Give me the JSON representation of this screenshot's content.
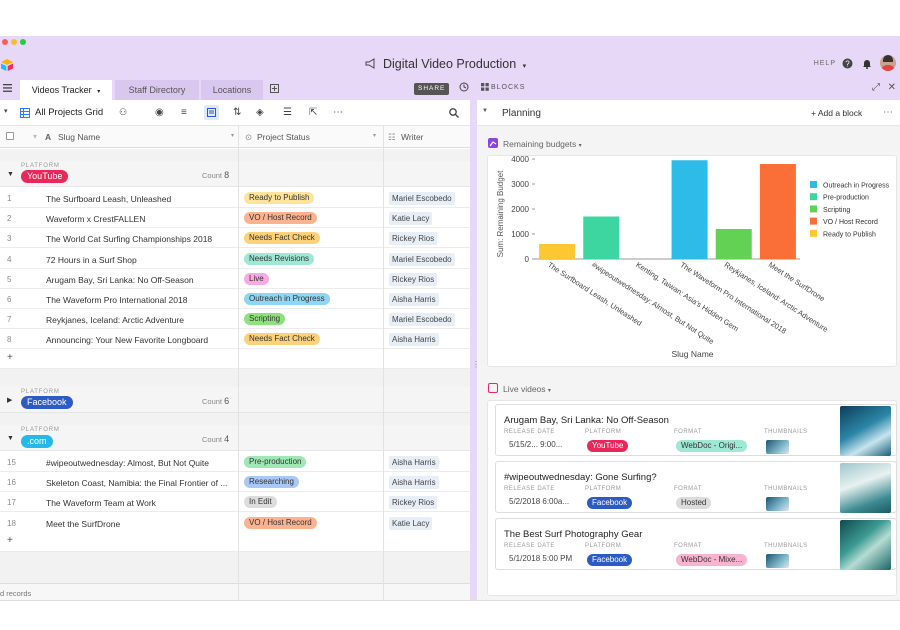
{
  "app": {
    "title": "Digital Video Production",
    "help": "HELP",
    "share": "SHARE",
    "blocks": "BLOCKS",
    "tabs": [
      "Videos Tracker",
      "Staff Directory",
      "Locations"
    ]
  },
  "view": {
    "name": "All Projects Grid",
    "columns": {
      "slug": "Slug Name",
      "status": "Project Status",
      "writer": "Writer"
    },
    "records_footer": "d records"
  },
  "groups": [
    {
      "platform_label": "PLATFORM",
      "name": "YouTube",
      "color": "#e8285a",
      "count_label": "Count",
      "count": "8",
      "rows": [
        {
          "n": "1",
          "slug": "The Surfboard Leash, Unleashed",
          "status": "Ready to Publish",
          "status_color": "#fde49a",
          "writer": "Mariel Escobedo"
        },
        {
          "n": "2",
          "slug": "Waveform x CrestFALLEN",
          "status": "VO / Host Record",
          "status_color": "#fbb28f",
          "writer": "Katie Lacy"
        },
        {
          "n": "3",
          "slug": "The World Cat Surfing Championships 2018",
          "status": "Needs Fact Check",
          "status_color": "#fbd27a",
          "writer": "Rickey Rios"
        },
        {
          "n": "4",
          "slug": "72 Hours in a Surf Shop",
          "status": "Needs Revisions",
          "status_color": "#9fe8d6",
          "writer": "Mariel Escobedo"
        },
        {
          "n": "5",
          "slug": "Arugam Bay, Sri Lanka: No Off-Season",
          "status": "Live",
          "status_color": "#f7a9e2",
          "writer": "Rickey Rios"
        },
        {
          "n": "6",
          "slug": "The Waveform Pro International 2018",
          "status": "Outreach in Progress",
          "status_color": "#8fd6f4",
          "writer": "Aisha Harris"
        },
        {
          "n": "7",
          "slug": "Reykjanes, Iceland: Arctic Adventure",
          "status": "Scripting",
          "status_color": "#8fe07e",
          "writer": "Mariel Escobedo"
        },
        {
          "n": "8",
          "slug": "Announcing: Your New Favorite Longboard",
          "status": "Needs Fact Check",
          "status_color": "#fbd27a",
          "writer": "Aisha Harris"
        }
      ]
    },
    {
      "platform_label": "PLATFORM",
      "name": "Facebook",
      "color": "#2d5bc4",
      "count_label": "Count",
      "count": "6",
      "rows": []
    },
    {
      "platform_label": "PLATFORM",
      "name": ".com",
      "color": "#25b8e8",
      "count_label": "Count",
      "count": "4",
      "rows": [
        {
          "n": "15",
          "slug": "#wipeoutwednesday: Almost, But Not Quite",
          "status": "Pre-production",
          "status_color": "#9fe8b5",
          "writer": "Aisha Harris"
        },
        {
          "n": "16",
          "slug": "Skeleton Coast, Namibia: the Final Frontier of ...",
          "status": "Researching",
          "status_color": "#a9c8f5",
          "writer": "Aisha Harris"
        },
        {
          "n": "17",
          "slug": "The Waveform Team at Work",
          "status": "In Edit",
          "status_color": "#dcdcdc",
          "writer": "Rickey Rios"
        },
        {
          "n": "18",
          "slug": "Meet the SurfDrone",
          "status": "VO / Host Record",
          "status_color": "#fbb28f",
          "writer": "Katie Lacy"
        }
      ]
    }
  ],
  "planning": {
    "title": "Planning",
    "add_block": "+ Add a block",
    "budget_block": "Remaining budgets",
    "live_block": "Live videos"
  },
  "chart_data": {
    "type": "bar",
    "title": "",
    "xlabel": "Slug Name",
    "ylabel": "Sum: Remaining Budget",
    "ylim": [
      0,
      4000
    ],
    "yticks": [
      0,
      1000,
      2000,
      3000,
      4000
    ],
    "categories": [
      "The Surfboard Leash, Unleashed",
      "#wipeoutwednesday: Almost, But Not Quite",
      "Kenting, Taiwan: Asia's Hidden Gem",
      "The Waveform Pro International 2018",
      "Reykjanes, Iceland: Arctic Adventure",
      "Meet the SurfDrone"
    ],
    "values": [
      600,
      1700,
      0,
      3950,
      1200,
      3800
    ],
    "bar_series": [
      "Ready to Publish",
      "Pre-production",
      "",
      "Outreach in Progress",
      "Scripting",
      "VO / Host Record"
    ],
    "legend": [
      {
        "name": "Outreach in Progress",
        "color": "#2ebbe8"
      },
      {
        "name": "Pre-production",
        "color": "#3dd6a0"
      },
      {
        "name": "Scripting",
        "color": "#63d254"
      },
      {
        "name": "VO / Host Record",
        "color": "#fa6f37"
      },
      {
        "name": "Ready to Publish",
        "color": "#fcc730"
      }
    ],
    "legend_position": "right",
    "grid": false
  },
  "live_videos": {
    "labels": {
      "release": "RELEASE DATE",
      "platform": "PLATFORM",
      "format": "FORMAT",
      "thumbs": "THUMBNAILS"
    },
    "items": [
      {
        "title": "Arugam Bay, Sri Lanka: No Off-Season",
        "date": "5/15/2...   9:00...",
        "platform": "YouTube",
        "platform_color": "#e8285a",
        "format": "WebDoc - Origi...",
        "format_color": "#9fe8d6"
      },
      {
        "title": "#wipeoutwednesday: Gone Surfing?",
        "date": "5/2/2018  6:00a...",
        "platform": "Facebook",
        "platform_color": "#2d5bc4",
        "format": "Hosted",
        "format_color": "#dcdcdc"
      },
      {
        "title": "The Best Surf Photography Gear",
        "date": "5/1/2018  5:00 PM",
        "platform": "Facebook",
        "platform_color": "#2d5bc4",
        "format": "WebDoc - Mixe...",
        "format_color": "#f7b3cf"
      }
    ]
  }
}
